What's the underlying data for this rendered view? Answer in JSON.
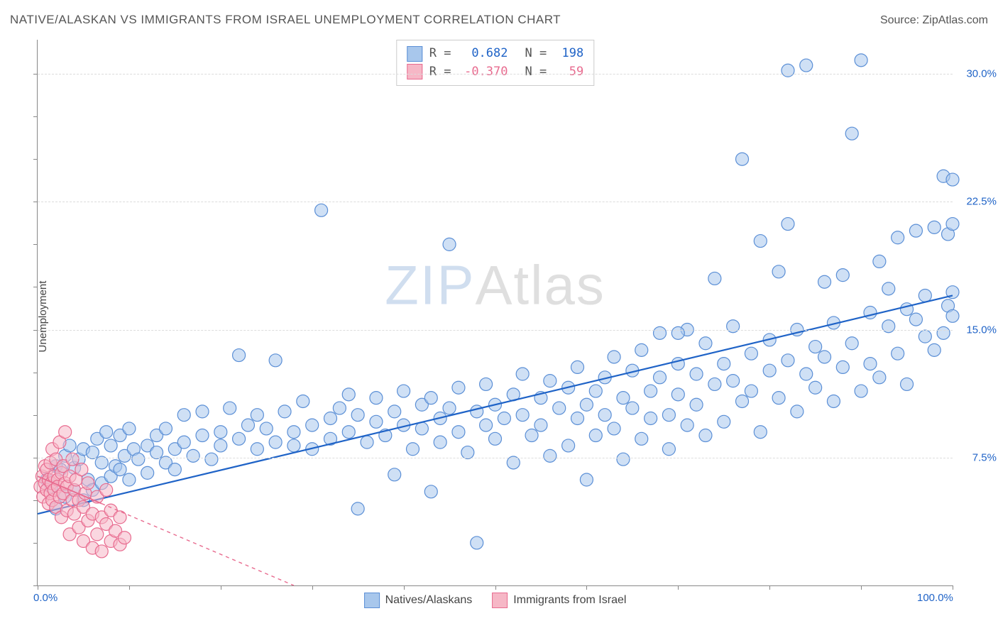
{
  "title": "NATIVE/ALASKAN VS IMMIGRANTS FROM ISRAEL UNEMPLOYMENT CORRELATION CHART",
  "source_label": "Source:",
  "source_name": "ZipAtlas.com",
  "ylabel": "Unemployment",
  "watermark_a": "ZIP",
  "watermark_b": "Atlas",
  "chart": {
    "type": "scatter",
    "xlim": [
      0,
      100
    ],
    "ylim": [
      0,
      32
    ],
    "x_ticks": [
      0,
      100
    ],
    "x_tick_labels": [
      "0.0%",
      "100.0%"
    ],
    "x_minor_step": 10,
    "y_ticks": [
      7.5,
      15.0,
      22.5,
      30.0
    ],
    "y_tick_labels": [
      "7.5%",
      "15.0%",
      "22.5%",
      "30.0%"
    ],
    "y_minor_step": 2.5,
    "grid_color": "#dcdcdc",
    "axis_color": "#888888",
    "background_color": "#ffffff",
    "series": [
      {
        "name": "Natives/Alaskans",
        "label": "Natives/Alaskans",
        "marker_radius": 9,
        "fill": "#a8c7ec",
        "fill_opacity": 0.55,
        "stroke": "#5b8fd6",
        "stroke_width": 1.2,
        "regression": {
          "x1": 0,
          "y1": 4.2,
          "x2": 100,
          "y2": 17.0,
          "color": "#1f63c7",
          "width": 2.2,
          "dash": ""
        },
        "R": 0.682,
        "N": 198,
        "stat_color": "#1f63c7",
        "points": [
          [
            1,
            6.2
          ],
          [
            1.5,
            5.8
          ],
          [
            2,
            7.0
          ],
          [
            2,
            4.5
          ],
          [
            2.5,
            6.8
          ],
          [
            3,
            5.2
          ],
          [
            3,
            7.6
          ],
          [
            3.5,
            8.2
          ],
          [
            4,
            5.6
          ],
          [
            4,
            6.9
          ],
          [
            4.5,
            7.4
          ],
          [
            5,
            5.0
          ],
          [
            5,
            8.0
          ],
          [
            5.5,
            6.2
          ],
          [
            6,
            7.8
          ],
          [
            6,
            5.6
          ],
          [
            6.5,
            8.6
          ],
          [
            7,
            6.0
          ],
          [
            7,
            7.2
          ],
          [
            7.5,
            9.0
          ],
          [
            8,
            6.4
          ],
          [
            8,
            8.2
          ],
          [
            8.5,
            7.0
          ],
          [
            9,
            6.8
          ],
          [
            9,
            8.8
          ],
          [
            9.5,
            7.6
          ],
          [
            10,
            6.2
          ],
          [
            10,
            9.2
          ],
          [
            10.5,
            8.0
          ],
          [
            11,
            7.4
          ],
          [
            12,
            8.2
          ],
          [
            12,
            6.6
          ],
          [
            13,
            7.8
          ],
          [
            13,
            8.8
          ],
          [
            14,
            7.2
          ],
          [
            14,
            9.2
          ],
          [
            15,
            8.0
          ],
          [
            15,
            6.8
          ],
          [
            16,
            10.0
          ],
          [
            16,
            8.4
          ],
          [
            17,
            7.6
          ],
          [
            18,
            8.8
          ],
          [
            18,
            10.2
          ],
          [
            19,
            7.4
          ],
          [
            20,
            9.0
          ],
          [
            20,
            8.2
          ],
          [
            21,
            10.4
          ],
          [
            22,
            8.6
          ],
          [
            22,
            13.5
          ],
          [
            23,
            9.4
          ],
          [
            24,
            8.0
          ],
          [
            24,
            10.0
          ],
          [
            25,
            9.2
          ],
          [
            26,
            8.4
          ],
          [
            26,
            13.2
          ],
          [
            27,
            10.2
          ],
          [
            28,
            9.0
          ],
          [
            28,
            8.2
          ],
          [
            29,
            10.8
          ],
          [
            30,
            9.4
          ],
          [
            30,
            8.0
          ],
          [
            31,
            22.0
          ],
          [
            32,
            9.8
          ],
          [
            32,
            8.6
          ],
          [
            33,
            10.4
          ],
          [
            34,
            9.0
          ],
          [
            34,
            11.2
          ],
          [
            35,
            4.5
          ],
          [
            35,
            10.0
          ],
          [
            36,
            8.4
          ],
          [
            37,
            9.6
          ],
          [
            37,
            11.0
          ],
          [
            38,
            8.8
          ],
          [
            39,
            10.2
          ],
          [
            39,
            6.5
          ],
          [
            40,
            9.4
          ],
          [
            40,
            11.4
          ],
          [
            41,
            8.0
          ],
          [
            42,
            10.6
          ],
          [
            42,
            9.2
          ],
          [
            43,
            5.5
          ],
          [
            43,
            11.0
          ],
          [
            44,
            9.8
          ],
          [
            44,
            8.4
          ],
          [
            45,
            10.4
          ],
          [
            45,
            20.0
          ],
          [
            46,
            9.0
          ],
          [
            46,
            11.6
          ],
          [
            47,
            7.8
          ],
          [
            48,
            10.2
          ],
          [
            48,
            2.5
          ],
          [
            49,
            9.4
          ],
          [
            49,
            11.8
          ],
          [
            50,
            8.6
          ],
          [
            50,
            10.6
          ],
          [
            51,
            9.8
          ],
          [
            52,
            11.2
          ],
          [
            52,
            7.2
          ],
          [
            53,
            10.0
          ],
          [
            53,
            12.4
          ],
          [
            54,
            8.8
          ],
          [
            55,
            11.0
          ],
          [
            55,
            9.4
          ],
          [
            56,
            12.0
          ],
          [
            56,
            7.6
          ],
          [
            57,
            10.4
          ],
          [
            58,
            11.6
          ],
          [
            58,
            8.2
          ],
          [
            59,
            9.8
          ],
          [
            59,
            12.8
          ],
          [
            60,
            10.6
          ],
          [
            60,
            6.2
          ],
          [
            61,
            11.4
          ],
          [
            61,
            8.8
          ],
          [
            62,
            12.2
          ],
          [
            62,
            10.0
          ],
          [
            63,
            13.4
          ],
          [
            63,
            9.2
          ],
          [
            64,
            11.0
          ],
          [
            64,
            7.4
          ],
          [
            65,
            12.6
          ],
          [
            65,
            10.4
          ],
          [
            66,
            8.6
          ],
          [
            66,
            13.8
          ],
          [
            67,
            11.4
          ],
          [
            67,
            9.8
          ],
          [
            68,
            12.2
          ],
          [
            68,
            14.8
          ],
          [
            69,
            10.0
          ],
          [
            69,
            8.0
          ],
          [
            70,
            13.0
          ],
          [
            70,
            11.2
          ],
          [
            71,
            9.4
          ],
          [
            71,
            15.0
          ],
          [
            72,
            12.4
          ],
          [
            72,
            10.6
          ],
          [
            73,
            14.2
          ],
          [
            73,
            8.8
          ],
          [
            74,
            11.8
          ],
          [
            74,
            18.0
          ],
          [
            75,
            13.0
          ],
          [
            75,
            9.6
          ],
          [
            76,
            12.0
          ],
          [
            76,
            15.2
          ],
          [
            77,
            10.8
          ],
          [
            77,
            25.0
          ],
          [
            78,
            13.6
          ],
          [
            78,
            11.4
          ],
          [
            79,
            9.0
          ],
          [
            79,
            20.2
          ],
          [
            80,
            12.6
          ],
          [
            80,
            14.4
          ],
          [
            81,
            11.0
          ],
          [
            81,
            18.4
          ],
          [
            82,
            13.2
          ],
          [
            82,
            21.2
          ],
          [
            83,
            15.0
          ],
          [
            83,
            10.2
          ],
          [
            84,
            12.4
          ],
          [
            84,
            30.5
          ],
          [
            85,
            14.0
          ],
          [
            85,
            11.6
          ],
          [
            86,
            17.8
          ],
          [
            86,
            13.4
          ],
          [
            87,
            15.4
          ],
          [
            87,
            10.8
          ],
          [
            88,
            18.2
          ],
          [
            88,
            12.8
          ],
          [
            89,
            26.5
          ],
          [
            89,
            14.2
          ],
          [
            90,
            30.8
          ],
          [
            90,
            11.4
          ],
          [
            91,
            16.0
          ],
          [
            91,
            13.0
          ],
          [
            92,
            19.0
          ],
          [
            92,
            12.2
          ],
          [
            93,
            15.2
          ],
          [
            93,
            17.4
          ],
          [
            94,
            20.4
          ],
          [
            94,
            13.6
          ],
          [
            95,
            16.2
          ],
          [
            95,
            11.8
          ],
          [
            96,
            15.6
          ],
          [
            96,
            20.8
          ],
          [
            97,
            14.6
          ],
          [
            97,
            17.0
          ],
          [
            98,
            21.0
          ],
          [
            98,
            13.8
          ],
          [
            99,
            14.8
          ],
          [
            99,
            24.0
          ],
          [
            99.5,
            16.4
          ],
          [
            99.5,
            20.6
          ],
          [
            100,
            15.8
          ],
          [
            100,
            23.8
          ],
          [
            100,
            17.2
          ],
          [
            100,
            21.2
          ],
          [
            82,
            30.2
          ],
          [
            70,
            14.8
          ]
        ]
      },
      {
        "name": "Immigrants from Israel",
        "label": "Immigrants from Israel",
        "marker_radius": 9,
        "fill": "#f6b7c6",
        "fill_opacity": 0.55,
        "stroke": "#e86b8f",
        "stroke_width": 1.2,
        "regression": {
          "x1": 0,
          "y1": 6.4,
          "x2": 28,
          "y2": 0.0,
          "color": "#e86b8f",
          "width": 1.8,
          "dash": "5,5"
        },
        "R": -0.37,
        "N": 59,
        "stat_color": "#e86b8f",
        "points": [
          [
            0.3,
            5.8
          ],
          [
            0.5,
            6.4
          ],
          [
            0.6,
            5.2
          ],
          [
            0.8,
            6.0
          ],
          [
            0.8,
            7.0
          ],
          [
            1.0,
            5.6
          ],
          [
            1.0,
            6.8
          ],
          [
            1.2,
            4.8
          ],
          [
            1.2,
            6.2
          ],
          [
            1.4,
            5.4
          ],
          [
            1.4,
            7.2
          ],
          [
            1.5,
            6.0
          ],
          [
            1.6,
            5.0
          ],
          [
            1.6,
            8.0
          ],
          [
            1.8,
            6.4
          ],
          [
            1.8,
            5.6
          ],
          [
            2.0,
            7.4
          ],
          [
            2.0,
            4.6
          ],
          [
            2.2,
            6.2
          ],
          [
            2.2,
            5.8
          ],
          [
            2.4,
            8.4
          ],
          [
            2.4,
            5.2
          ],
          [
            2.6,
            6.6
          ],
          [
            2.6,
            4.0
          ],
          [
            2.8,
            7.0
          ],
          [
            2.8,
            5.4
          ],
          [
            3.0,
            6.0
          ],
          [
            3.0,
            9.0
          ],
          [
            3.2,
            4.4
          ],
          [
            3.2,
            5.8
          ],
          [
            3.5,
            6.4
          ],
          [
            3.5,
            3.0
          ],
          [
            3.8,
            5.0
          ],
          [
            3.8,
            7.4
          ],
          [
            4.0,
            5.6
          ],
          [
            4.0,
            4.2
          ],
          [
            4.2,
            6.2
          ],
          [
            4.5,
            5.0
          ],
          [
            4.5,
            3.4
          ],
          [
            4.8,
            6.8
          ],
          [
            5.0,
            4.6
          ],
          [
            5.0,
            2.6
          ],
          [
            5.2,
            5.4
          ],
          [
            5.5,
            6.0
          ],
          [
            5.5,
            3.8
          ],
          [
            6.0,
            4.2
          ],
          [
            6.0,
            2.2
          ],
          [
            6.5,
            5.2
          ],
          [
            6.5,
            3.0
          ],
          [
            7.0,
            4.0
          ],
          [
            7.0,
            2.0
          ],
          [
            7.5,
            3.6
          ],
          [
            7.5,
            5.6
          ],
          [
            8.0,
            2.6
          ],
          [
            8.0,
            4.4
          ],
          [
            8.5,
            3.2
          ],
          [
            9.0,
            2.4
          ],
          [
            9.0,
            4.0
          ],
          [
            9.5,
            2.8
          ]
        ]
      }
    ]
  },
  "legend_top": {
    "R_label": "R =",
    "N_label": "N ="
  }
}
